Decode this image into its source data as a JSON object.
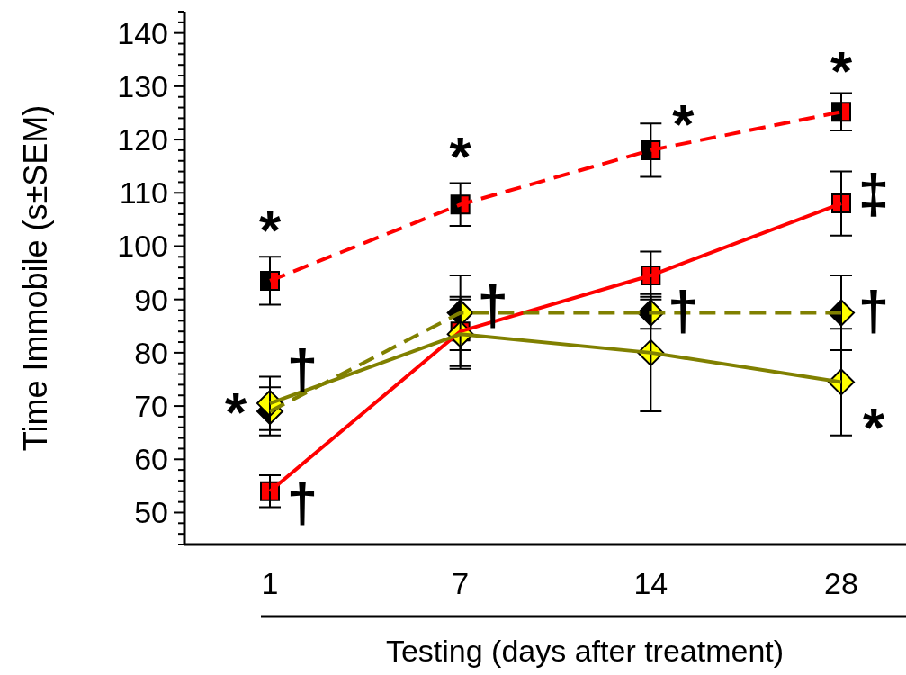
{
  "chart_data": {
    "type": "line",
    "xlabel": "Testing (days after treatment)",
    "ylabel": "Time Immobile (s±SEM)",
    "categories": [
      "1",
      "7",
      "14",
      "28"
    ],
    "series": [
      {
        "color": "#ff0000",
        "marker": "square",
        "line_style": "dashed",
        "values": [
          93.5,
          107.8,
          118,
          125.2
        ],
        "errors": [
          4.5,
          4,
          5,
          3.5
        ]
      },
      {
        "color": "#ff0000",
        "marker": "square",
        "line_style": "solid",
        "values": [
          54,
          84,
          94.5,
          108
        ],
        "errors": [
          3,
          6.5,
          4.5,
          6
        ]
      },
      {
        "color": "#808000",
        "marker": "diamond",
        "line_style": "dashed",
        "values": [
          69,
          87.5,
          87.5,
          87.5
        ],
        "errors": [
          4.5,
          7,
          3,
          7
        ]
      },
      {
        "color": "#808000",
        "marker": "diamond",
        "line_style": "solid",
        "values": [
          70.5,
          83.5,
          80,
          74.5
        ],
        "errors": [
          5,
          6.5,
          11,
          10
        ]
      }
    ],
    "ylim": [
      44,
      144
    ],
    "yticks": [
      {
        "value": 44,
        "label": null
      },
      {
        "value": 46,
        "label": null
      },
      {
        "value": 48,
        "label": null
      },
      50,
      {
        "value": 52,
        "label": null
      },
      {
        "value": 54,
        "label": null
      },
      {
        "value": 56,
        "label": null
      },
      {
        "value": 58,
        "label": null
      },
      60,
      {
        "value": 62,
        "label": null
      },
      {
        "value": 64,
        "label": null
      },
      {
        "value": 66,
        "label": null
      },
      {
        "value": 68,
        "label": null
      },
      70,
      {
        "value": 72,
        "label": null
      },
      {
        "value": 74,
        "label": null
      },
      {
        "value": 76,
        "label": null
      },
      {
        "value": 78,
        "label": null
      },
      80,
      {
        "value": 82,
        "label": null
      },
      {
        "value": 84,
        "label": null
      },
      {
        "value": 86,
        "label": null
      },
      {
        "value": 88,
        "label": null
      },
      90,
      {
        "value": 92,
        "label": null
      },
      {
        "value": 94,
        "label": null
      },
      {
        "value": 96,
        "label": null
      },
      {
        "value": 98,
        "label": null
      },
      100,
      {
        "value": 102,
        "label": null
      },
      {
        "value": 104,
        "label": null
      },
      {
        "value": 106,
        "label": null
      },
      {
        "value": 108,
        "label": null
      },
      110,
      {
        "value": 112,
        "label": null
      },
      {
        "value": 114,
        "label": null
      },
      {
        "value": 116,
        "label": null
      },
      {
        "value": 118,
        "label": null
      },
      120,
      {
        "value": 122,
        "label": null
      },
      {
        "value": 124,
        "label": null
      },
      {
        "value": 126,
        "label": null
      },
      {
        "value": 128,
        "label": null
      },
      130,
      {
        "value": 132,
        "label": null
      },
      {
        "value": 134,
        "label": null
      },
      {
        "value": 136,
        "label": null
      },
      {
        "value": 138,
        "label": null
      },
      140,
      {
        "value": 142,
        "label": null
      },
      {
        "value": 144,
        "label": null
      }
    ],
    "grid": false,
    "annotations": [
      "*",
      "*",
      "*",
      "*",
      "‡",
      "†",
      "†",
      "†",
      "†",
      "*",
      "†",
      "*"
    ]
  }
}
